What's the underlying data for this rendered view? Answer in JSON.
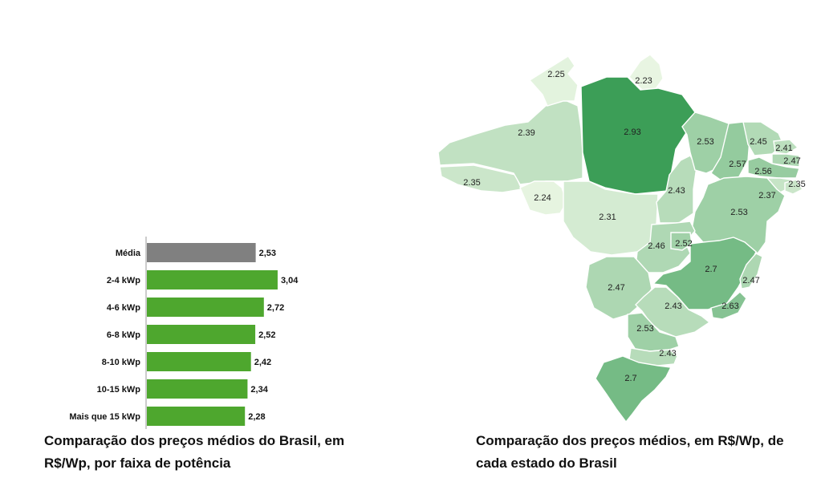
{
  "chart_data": [
    {
      "type": "bar",
      "orientation": "horizontal",
      "categories": [
        "Média",
        "2-4 kWp",
        "4-6 kWp",
        "6-8 kWp",
        "8-10 kWp",
        "10-15 kWp",
        "Mais que 15 kWp"
      ],
      "values": [
        2.53,
        3.04,
        2.72,
        2.52,
        2.42,
        2.34,
        2.28
      ],
      "value_labels": [
        "2,53",
        "3,04",
        "2,72",
        "2,52",
        "2,42",
        "2,34",
        "2,28"
      ],
      "colors": [
        "#808080",
        "#4ea72e",
        "#4ea72e",
        "#4ea72e",
        "#4ea72e",
        "#4ea72e",
        "#4ea72e"
      ],
      "xlim": [
        0,
        3.2
      ],
      "grid": false,
      "title": "Comparação dos preços médios do Brasil, em R$/Wp, por faixa de potência"
    },
    {
      "type": "choropleth",
      "title": "Comparação dos preços médios, em R$/Wp, de cada estado do Brasil",
      "regions": [
        {
          "region": "AC",
          "value": 2.35,
          "label": "2.35"
        },
        {
          "region": "AM",
          "value": 2.39,
          "label": "2.39"
        },
        {
          "region": "RR",
          "value": 2.25,
          "label": "2.25"
        },
        {
          "region": "AP",
          "value": 2.23,
          "label": "2.23"
        },
        {
          "region": "PA",
          "value": 2.93,
          "label": "2.93"
        },
        {
          "region": "RO",
          "value": 2.24,
          "label": "2.24"
        },
        {
          "region": "MT",
          "value": 2.31,
          "label": "2.31"
        },
        {
          "region": "TO",
          "value": 2.43,
          "label": "2.43"
        },
        {
          "region": "MA",
          "value": 2.53,
          "label": "2.53"
        },
        {
          "region": "PI",
          "value": 2.57,
          "label": "2.57"
        },
        {
          "region": "CE",
          "value": 2.45,
          "label": "2.45"
        },
        {
          "region": "RN",
          "value": 2.41,
          "label": "2.41"
        },
        {
          "region": "PB",
          "value": 2.47,
          "label": "2.47"
        },
        {
          "region": "PE",
          "value": 2.56,
          "label": "2.56"
        },
        {
          "region": "AL",
          "value": 2.37,
          "label": "2.37"
        },
        {
          "region": "SE",
          "value": 2.35,
          "label": "2.35"
        },
        {
          "region": "BA",
          "value": 2.53,
          "label": "2.53"
        },
        {
          "region": "GO",
          "value": 2.46,
          "label": "2.46"
        },
        {
          "region": "DF",
          "value": 2.52,
          "label": "2.52"
        },
        {
          "region": "MG",
          "value": 2.7,
          "label": "2.7"
        },
        {
          "region": "ES",
          "value": 2.47,
          "label": "2.47"
        },
        {
          "region": "MS",
          "value": 2.47,
          "label": "2.47"
        },
        {
          "region": "SP",
          "value": 2.43,
          "label": "2.43"
        },
        {
          "region": "RJ",
          "value": 2.63,
          "label": "2.63"
        },
        {
          "region": "PR",
          "value": 2.53,
          "label": "2.53"
        },
        {
          "region": "SC",
          "value": 2.43,
          "label": "2.43"
        },
        {
          "region": "RS",
          "value": 2.7,
          "label": "2.7"
        }
      ],
      "color_scale": {
        "min": 2.23,
        "max": 2.93,
        "low_color": "#e8f5e2",
        "high_color": "#3c9e57"
      }
    }
  ],
  "captions": {
    "left": "Comparação dos preços médios do Brasil, em R$/Wp, por faixa de potência",
    "right": "Comparação dos preços médios, em R$/Wp, de cada estado do Brasil"
  }
}
